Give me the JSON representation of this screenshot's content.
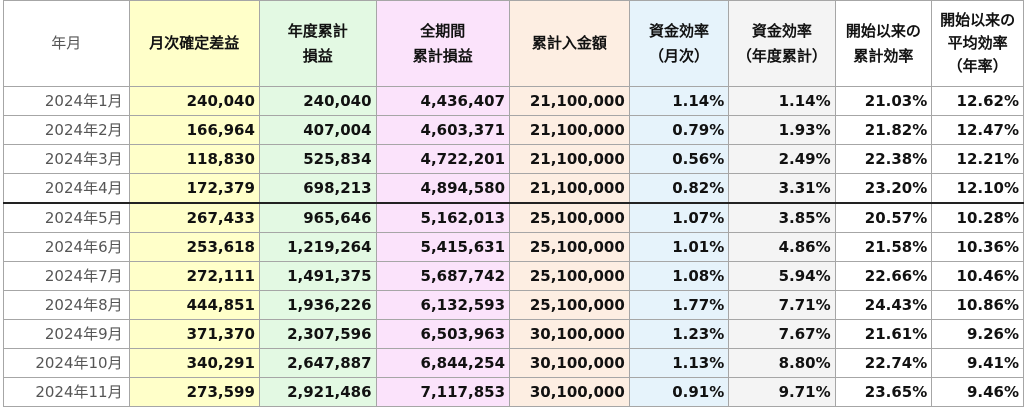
{
  "headers": {
    "month": "年月",
    "monthly": "月次確定差益",
    "ytd_l1": "年度累計",
    "ytd_l2": "損益",
    "total_l1": "全期間",
    "total_l2": "累計損益",
    "deposit": "累計入金額",
    "eff_m_l1": "資金効率",
    "eff_m_l2": "（月次）",
    "eff_y_l1": "資金効率",
    "eff_y_l2": "（年度累計）",
    "eff_c_l1": "開始以来の",
    "eff_c_l2": "累計効率",
    "avg_l1": "開始以来の",
    "avg_l2": "平均効率",
    "avg_l3": "（年率）"
  },
  "rows": [
    {
      "month": "2024年1月",
      "monthly": "240,040",
      "ytd": "240,040",
      "total": "4,436,407",
      "deposit": "21,100,000",
      "eff_m": "1.14%",
      "eff_y": "1.14%",
      "eff_c": "21.03%",
      "avg": "12.62%"
    },
    {
      "month": "2024年2月",
      "monthly": "166,964",
      "ytd": "407,004",
      "total": "4,603,371",
      "deposit": "21,100,000",
      "eff_m": "0.79%",
      "eff_y": "1.93%",
      "eff_c": "21.82%",
      "avg": "12.47%"
    },
    {
      "month": "2024年3月",
      "monthly": "118,830",
      "ytd": "525,834",
      "total": "4,722,201",
      "deposit": "21,100,000",
      "eff_m": "0.56%",
      "eff_y": "2.49%",
      "eff_c": "22.38%",
      "avg": "12.21%"
    },
    {
      "month": "2024年4月",
      "monthly": "172,379",
      "ytd": "698,213",
      "total": "4,894,580",
      "deposit": "21,100,000",
      "eff_m": "0.82%",
      "eff_y": "3.31%",
      "eff_c": "23.20%",
      "avg": "12.10%"
    },
    {
      "month": "2024年5月",
      "monthly": "267,433",
      "ytd": "965,646",
      "total": "5,162,013",
      "deposit": "25,100,000",
      "eff_m": "1.07%",
      "eff_y": "3.85%",
      "eff_c": "20.57%",
      "avg": "10.28%"
    },
    {
      "month": "2024年6月",
      "monthly": "253,618",
      "ytd": "1,219,264",
      "total": "5,415,631",
      "deposit": "25,100,000",
      "eff_m": "1.01%",
      "eff_y": "4.86%",
      "eff_c": "21.58%",
      "avg": "10.36%"
    },
    {
      "month": "2024年7月",
      "monthly": "272,111",
      "ytd": "1,491,375",
      "total": "5,687,742",
      "deposit": "25,100,000",
      "eff_m": "1.08%",
      "eff_y": "5.94%",
      "eff_c": "22.66%",
      "avg": "10.46%"
    },
    {
      "month": "2024年8月",
      "monthly": "444,851",
      "ytd": "1,936,226",
      "total": "6,132,593",
      "deposit": "25,100,000",
      "eff_m": "1.77%",
      "eff_y": "7.71%",
      "eff_c": "24.43%",
      "avg": "10.86%"
    },
    {
      "month": "2024年9月",
      "monthly": "371,370",
      "ytd": "2,307,596",
      "total": "6,503,963",
      "deposit": "30,100,000",
      "eff_m": "1.23%",
      "eff_y": "7.67%",
      "eff_c": "21.61%",
      "avg": "9.26%"
    },
    {
      "month": "2024年10月",
      "monthly": "340,291",
      "ytd": "2,647,887",
      "total": "6,844,254",
      "deposit": "30,100,000",
      "eff_m": "1.13%",
      "eff_y": "8.80%",
      "eff_c": "22.74%",
      "avg": "9.41%"
    },
    {
      "month": "2024年11月",
      "monthly": "273,599",
      "ytd": "2,921,486",
      "total": "7,117,853",
      "deposit": "30,100,000",
      "eff_m": "0.91%",
      "eff_y": "9.71%",
      "eff_c": "23.65%",
      "avg": "9.46%"
    }
  ],
  "colors": {
    "monthly_bg": "#ffffc9",
    "ytd_bg": "#e3f9e3",
    "total_bg": "#fbe3fb",
    "deposit_bg": "#fdeee2",
    "eff_m_bg": "#e6f3fb",
    "eff_y_bg": "#f4f4f4"
  }
}
